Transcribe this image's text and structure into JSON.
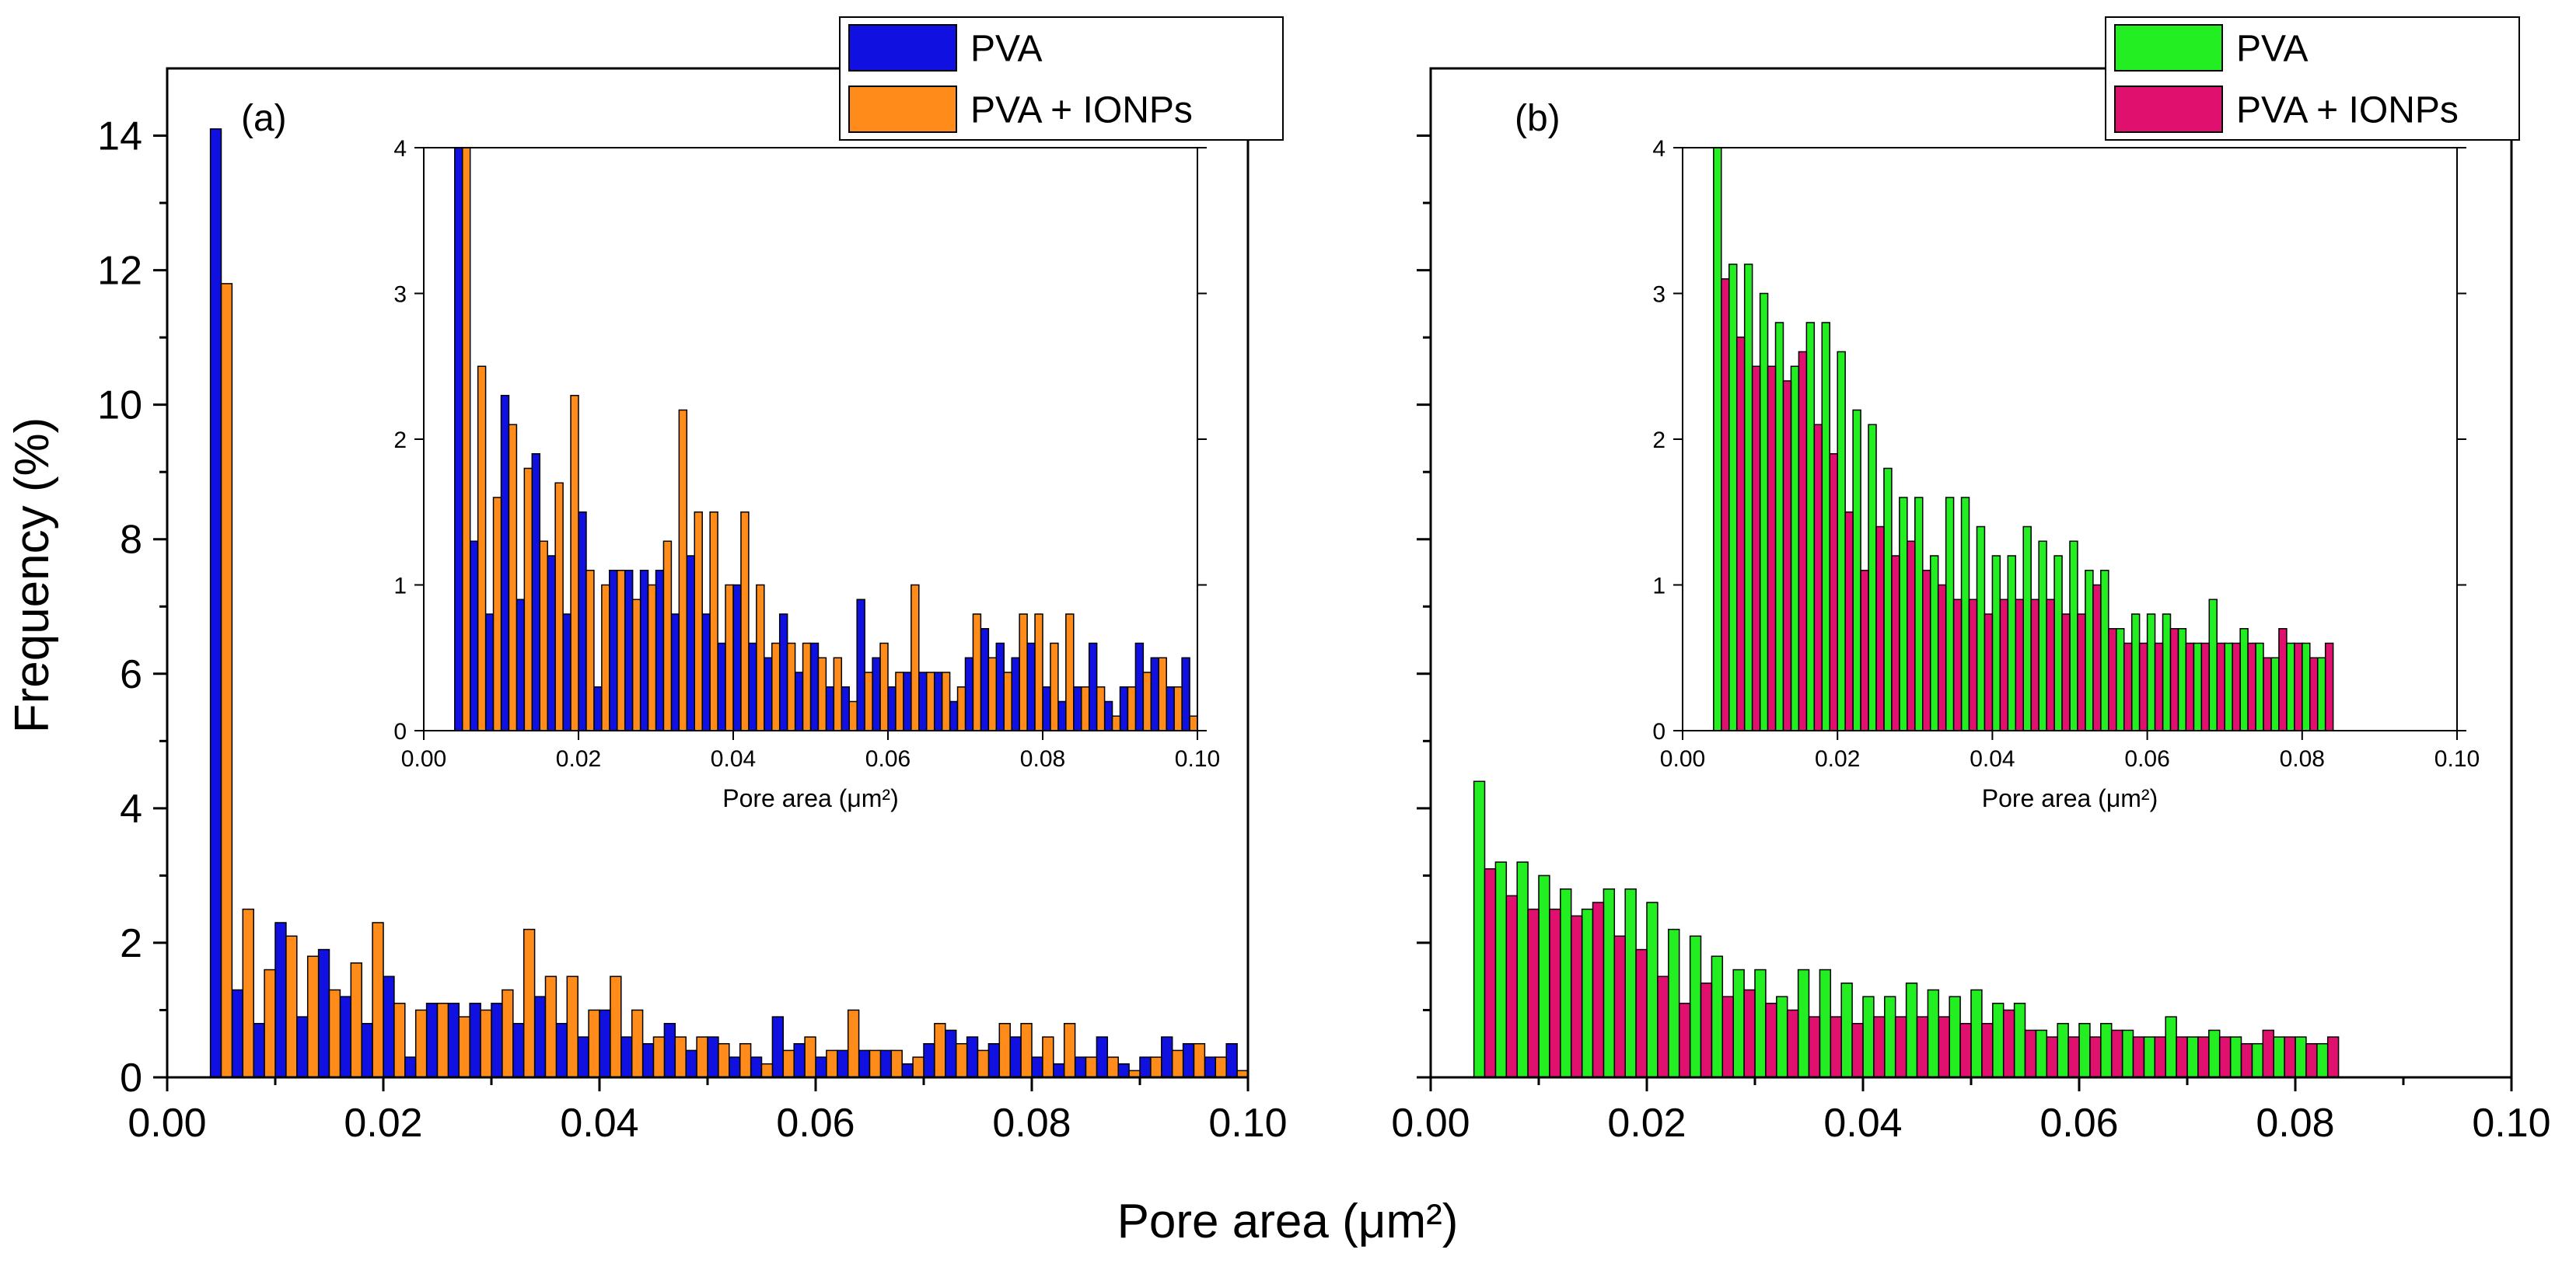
{
  "figure": {
    "x_axis_title": "Pore area (μm²)",
    "y_axis_title": "Frequency (%)"
  },
  "chart_data": [
    {
      "type": "bar",
      "panel_label": "(a)",
      "xlabel": "Pore area (μm²)",
      "ylabel": "Frequency (%)",
      "xlim": [
        0,
        0.1
      ],
      "ylim": [
        0,
        15
      ],
      "x_ticks": [
        "0.00",
        "0.02",
        "0.04",
        "0.06",
        "0.08",
        "0.10"
      ],
      "y_ticks": [
        "0",
        "2",
        "4",
        "6",
        "8",
        "10",
        "12",
        "14"
      ],
      "legend_position": "top-right",
      "series": [
        {
          "name": "PVA",
          "color": "#1010e0",
          "values": [
            14.1,
            1.3,
            0.8,
            2.3,
            0.9,
            1.9,
            1.2,
            0.8,
            1.5,
            0.3,
            1.1,
            1.1,
            1.1,
            1.1,
            0.8,
            1.2,
            0.8,
            0.6,
            1.0,
            0.6,
            0.5,
            0.8,
            0.4,
            0.6,
            0.3,
            0.3,
            0.9,
            0.5,
            0.3,
            0.4,
            0.4,
            0.4,
            0.2,
            0.5,
            0.7,
            0.6,
            0.5,
            0.6,
            0.3,
            0.2,
            0.3,
            0.6,
            0.2,
            0.3,
            0.6,
            0.5,
            0.3,
            0.5
          ]
        },
        {
          "name": "PVA + IONPs",
          "color": "#ff8c1a",
          "values": [
            11.8,
            2.5,
            1.6,
            2.1,
            1.8,
            1.3,
            1.7,
            2.3,
            1.1,
            1.0,
            1.1,
            0.9,
            1.0,
            1.3,
            2.2,
            1.5,
            1.5,
            1.0,
            1.5,
            1.0,
            0.6,
            0.6,
            0.6,
            0.5,
            0.5,
            0.2,
            0.4,
            0.6,
            0.4,
            1.0,
            0.4,
            0.4,
            0.3,
            0.8,
            0.5,
            0.4,
            0.8,
            0.8,
            0.6,
            0.8,
            0.3,
            0.3,
            0.1,
            0.3,
            0.4,
            0.5,
            0.3,
            0.1
          ]
        }
      ],
      "inset": {
        "xlabel": "Pore area (μm²)",
        "xlim": [
          0,
          0.1
        ],
        "ylim": [
          0,
          4
        ],
        "x_ticks": [
          "0.00",
          "0.02",
          "0.04",
          "0.06",
          "0.08",
          "0.10"
        ],
        "y_ticks": [
          "0",
          "1",
          "2",
          "3",
          "4"
        ]
      }
    },
    {
      "type": "bar",
      "panel_label": "(b)",
      "xlabel": "Pore area (μm²)",
      "ylabel": "Frequency (%)",
      "xlim": [
        0,
        0.1
      ],
      "ylim": [
        0,
        15
      ],
      "x_ticks": [
        "0.00",
        "0.02",
        "0.04",
        "0.06",
        "0.08",
        "0.10"
      ],
      "y_ticks": [],
      "legend_position": "top-right",
      "series": [
        {
          "name": "PVA",
          "color": "#22ee22",
          "values": [
            4.4,
            3.2,
            3.2,
            3.0,
            2.8,
            2.5,
            2.8,
            2.8,
            2.6,
            2.2,
            2.1,
            1.8,
            1.6,
            1.6,
            1.2,
            1.6,
            1.6,
            1.4,
            1.2,
            1.2,
            1.4,
            1.3,
            1.2,
            1.3,
            1.1,
            1.1,
            0.7,
            0.8,
            0.8,
            0.8,
            0.7,
            0.6,
            0.9,
            0.6,
            0.7,
            0.6,
            0.5,
            0.6,
            0.6,
            0.5
          ]
        },
        {
          "name": "PVA + IONPs",
          "color": "#e0106e",
          "values": [
            3.1,
            2.7,
            2.5,
            2.5,
            2.4,
            2.6,
            2.1,
            1.9,
            1.5,
            1.1,
            1.4,
            1.2,
            1.3,
            1.1,
            1.0,
            0.9,
            0.9,
            0.8,
            0.9,
            0.9,
            0.9,
            0.9,
            0.8,
            0.8,
            1.0,
            0.7,
            0.6,
            0.6,
            0.6,
            0.7,
            0.6,
            0.6,
            0.6,
            0.6,
            0.6,
            0.5,
            0.7,
            0.6,
            0.5,
            0.6
          ]
        }
      ],
      "inset": {
        "xlabel": "Pore area (μm²)",
        "xlim": [
          0,
          0.1
        ],
        "ylim": [
          0,
          4
        ],
        "x_ticks": [
          "0.00",
          "0.02",
          "0.04",
          "0.06",
          "0.08",
          "0.10"
        ],
        "y_ticks": [
          "0",
          "1",
          "2",
          "3",
          "4"
        ]
      }
    }
  ]
}
